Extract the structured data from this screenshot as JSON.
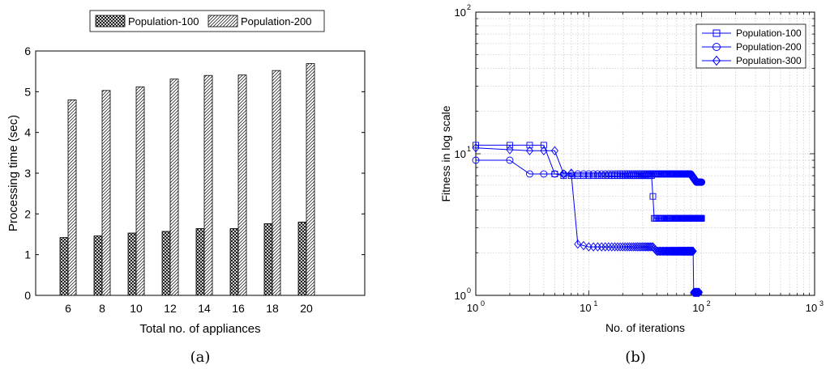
{
  "chart_data": [
    {
      "type": "bar",
      "panel_label": "(a)",
      "xlabel": "Total no. of appliances",
      "ylabel": "Processing time (sec)",
      "categories": [
        "6",
        "8",
        "10",
        "12",
        "14",
        "16",
        "18",
        "20"
      ],
      "ylim": [
        0,
        6
      ],
      "yticks": [
        "0",
        "1",
        "2",
        "3",
        "4",
        "5",
        "6"
      ],
      "grid": false,
      "legend_position": "top-outside",
      "series": [
        {
          "name": "Population-100",
          "values": [
            1.42,
            1.46,
            1.53,
            1.57,
            1.64,
            1.64,
            1.76,
            1.8
          ]
        },
        {
          "name": "Population-200",
          "values": [
            4.8,
            5.03,
            5.12,
            5.31,
            5.4,
            5.41,
            5.52,
            5.69
          ]
        }
      ]
    },
    {
      "type": "line",
      "panel_label": "(b)",
      "xlabel": "No. of iterations",
      "ylabel": "Fitness in log scale",
      "xscale": "log",
      "yscale": "log",
      "xlim": [
        1,
        1000
      ],
      "ylim": [
        1,
        100
      ],
      "xticks": [
        "10",
        "10",
        "10",
        "10"
      ],
      "xtick_exp": [
        "0",
        "1",
        "2",
        "3"
      ],
      "yticks": [
        "10",
        "10",
        "10"
      ],
      "ytick_exp": [
        "0",
        "1",
        "2"
      ],
      "grid": true,
      "legend_position": "top-right",
      "color": "#0000ff",
      "series": [
        {
          "name": "Population-100",
          "marker": "square",
          "x": [
            1,
            2,
            3,
            4,
            5,
            6,
            10,
            20,
            36,
            37,
            38,
            50,
            100
          ],
          "y": [
            11.5,
            11.5,
            11.5,
            11.5,
            7.2,
            7.0,
            7.0,
            7.0,
            7.0,
            5.0,
            3.5,
            3.5,
            3.5
          ]
        },
        {
          "name": "Population-200",
          "marker": "circle",
          "x": [
            1,
            2,
            3,
            5,
            10,
            20,
            50,
            80,
            90,
            100
          ],
          "y": [
            9.0,
            9.0,
            7.2,
            7.2,
            7.2,
            7.2,
            7.2,
            7.2,
            6.3,
            6.3
          ]
        },
        {
          "name": "Population-300",
          "marker": "diamond",
          "x": [
            1,
            3,
            4,
            5,
            6,
            7,
            8,
            10,
            20,
            37,
            40,
            80,
            84,
            85,
            90,
            95
          ],
          "y": [
            11.0,
            10.5,
            10.5,
            10.5,
            7.2,
            7.3,
            2.3,
            2.2,
            2.2,
            2.2,
            2.05,
            2.05,
            2.05,
            1.05,
            1.05,
            1.05
          ]
        }
      ]
    }
  ]
}
